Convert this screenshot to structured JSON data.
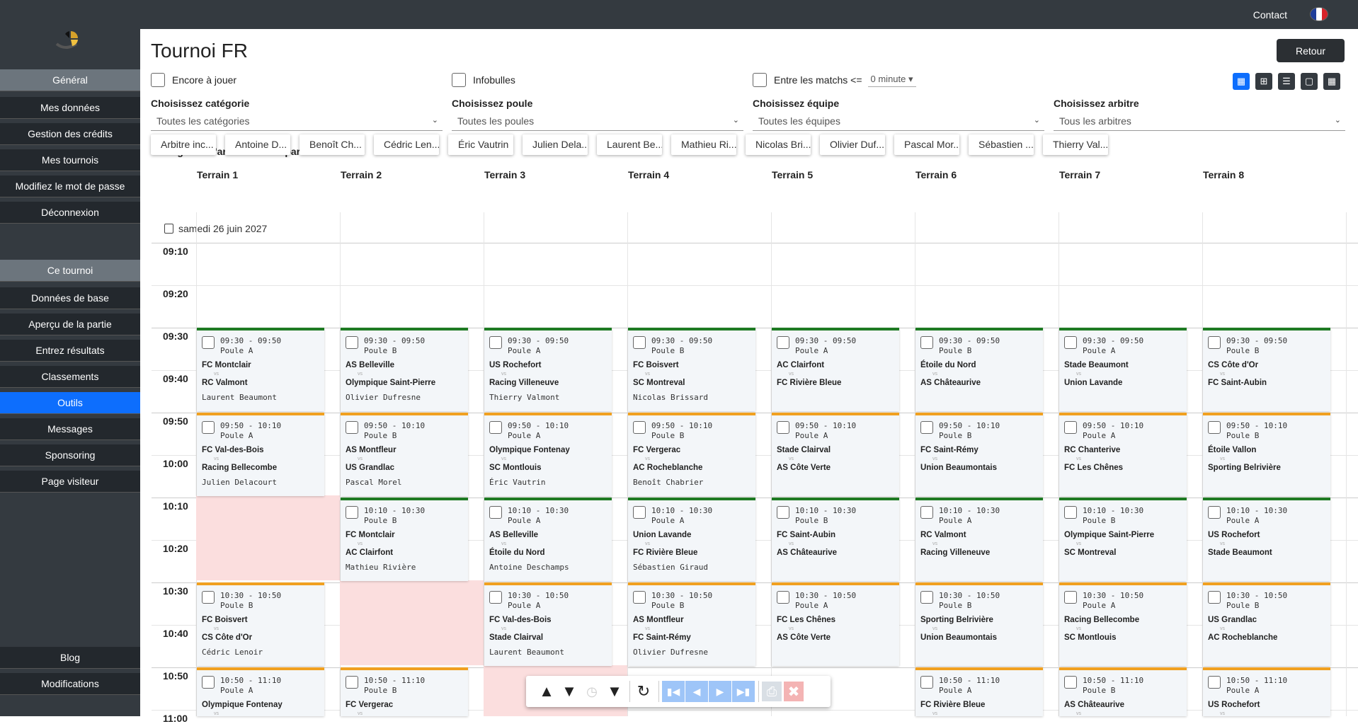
{
  "topbar": {
    "contact": "Contact"
  },
  "sidebar": {
    "general_header": "Général",
    "general_items": [
      "Mes données",
      "Gestion des crédits",
      "Mes tournois",
      "Modifiez le mot de passe",
      "Déconnexion"
    ],
    "tournoi_header": "Ce tournoi",
    "tournoi_items": [
      "Données de base",
      "Aperçu de la partie",
      "Entrez résultats",
      "Classements",
      "Outils",
      "Messages",
      "Sponsoring",
      "Page visiteur"
    ],
    "active_item": "Outils",
    "bottom_items": [
      "Blog",
      "Modifications"
    ]
  },
  "page": {
    "title": "Tournoi FR",
    "back_button": "Retour"
  },
  "options": {
    "encore": "Encore à jouer",
    "infobulles": "Infobulles",
    "entre": "Entre les matchs <=",
    "minutes": "0 minute"
  },
  "filters": {
    "categorie_label": "Choisissez catégorie",
    "categorie_value": "Toutes les catégories",
    "poule_label": "Choisissez poule",
    "poule_value": "Toutes les poules",
    "equipe_label": "Choisissez équipe",
    "equipe_value": "Toutes les équipes",
    "arbitre_label": "Choisissez arbitre",
    "arbitre_value": "Tous les arbitres"
  },
  "referees": {
    "label": "Faire glisser l'arbitre vers la partie",
    "items": [
      "Arbitre inc...",
      "Antoine D...",
      "Benoît Ch...",
      "Cédric Len...",
      "Éric Vautrin",
      "Julien Dela...",
      "Laurent Be...",
      "Mathieu Ri...",
      "Nicolas Bri...",
      "Olivier Duf...",
      "Pascal Mor...",
      "Sébastien ...",
      "Thierry Val..."
    ]
  },
  "terrains": [
    "Terrain 1",
    "Terrain 2",
    "Terrain 3",
    "Terrain 4",
    "Terrain 5",
    "Terrain 6",
    "Terrain 7",
    "Terrain 8"
  ],
  "date": "samedi 26 juin 2027",
  "times": [
    "09:10",
    "09:20",
    "09:30",
    "09:40",
    "09:50",
    "10:00",
    "10:10",
    "10:20",
    "10:30",
    "10:40",
    "10:50",
    "11:00"
  ],
  "slots": [
    {
      "time": "09:30 - 09:50",
      "color": "#1e7a23",
      "matches": [
        {
          "col": 0,
          "poule": "Poule A",
          "a": "FC Montclair",
          "b": "RC Valmont",
          "ref": "Laurent Beaumont"
        },
        {
          "col": 1,
          "poule": "Poule B",
          "a": "AS Belleville",
          "b": "Olympique Saint-Pierre",
          "ref": "Olivier Dufresne"
        },
        {
          "col": 2,
          "poule": "Poule A",
          "a": "US Rochefort",
          "b": "Racing Villeneuve",
          "ref": "Thierry Valmont"
        },
        {
          "col": 3,
          "poule": "Poule B",
          "a": "FC Boisvert",
          "b": "SC Montreval",
          "ref": "Nicolas Brissard"
        },
        {
          "col": 4,
          "poule": "Poule A",
          "a": "AC Clairfont",
          "b": "FC Rivière Bleue",
          "ref": ""
        },
        {
          "col": 5,
          "poule": "Poule B",
          "a": "Étoile du Nord",
          "b": "AS Châteaurive",
          "ref": ""
        },
        {
          "col": 6,
          "poule": "Poule A",
          "a": "Stade Beaumont",
          "b": "Union Lavande",
          "ref": ""
        },
        {
          "col": 7,
          "poule": "Poule B",
          "a": "CS Côte d'Or",
          "b": "FC Saint-Aubin",
          "ref": ""
        }
      ]
    },
    {
      "time": "09:50 - 10:10",
      "color": "#f0a020",
      "matches": [
        {
          "col": 0,
          "poule": "Poule A",
          "a": "FC Val-des-Bois",
          "b": "Racing Bellecombe",
          "ref": "Julien Delacourt"
        },
        {
          "col": 1,
          "poule": "Poule B",
          "a": "AS Montfleur",
          "b": "US Grandlac",
          "ref": "Pascal Morel"
        },
        {
          "col": 2,
          "poule": "Poule A",
          "a": "Olympique Fontenay",
          "b": "SC Montlouis",
          "ref": "Éric Vautrin"
        },
        {
          "col": 3,
          "poule": "Poule B",
          "a": "FC Vergerac",
          "b": "AC Rocheblanche",
          "ref": "Benoît Chabrier"
        },
        {
          "col": 4,
          "poule": "Poule A",
          "a": "Stade Clairval",
          "b": "AS Côte Verte",
          "ref": ""
        },
        {
          "col": 5,
          "poule": "Poule B",
          "a": "FC Saint-Rémy",
          "b": "Union Beaumontais",
          "ref": ""
        },
        {
          "col": 6,
          "poule": "Poule A",
          "a": "RC Chanterive",
          "b": "FC Les Chênes",
          "ref": ""
        },
        {
          "col": 7,
          "poule": "Poule B",
          "a": "Étoile Vallon",
          "b": "Sporting Belrivière",
          "ref": ""
        }
      ]
    },
    {
      "time": "10:10 - 10:30",
      "color": "#1e7a23",
      "matches": [
        {
          "col": 1,
          "poule": "Poule B",
          "a": "FC Montclair",
          "b": "AC Clairfont",
          "ref": "Mathieu Rivière"
        },
        {
          "col": 2,
          "poule": "Poule A",
          "a": "AS Belleville",
          "b": "Étoile du Nord",
          "ref": "Antoine Deschamps"
        },
        {
          "col": 3,
          "poule": "Poule A",
          "a": "Union Lavande",
          "b": "FC Rivière Bleue",
          "ref": "Sébastien Giraud"
        },
        {
          "col": 4,
          "poule": "Poule B",
          "a": "FC Saint-Aubin",
          "b": "AS Châteaurive",
          "ref": ""
        },
        {
          "col": 5,
          "poule": "Poule A",
          "a": "RC Valmont",
          "b": "Racing Villeneuve",
          "ref": ""
        },
        {
          "col": 6,
          "poule": "Poule B",
          "a": "Olympique Saint-Pierre",
          "b": "SC Montreval",
          "ref": ""
        },
        {
          "col": 7,
          "poule": "Poule A",
          "a": "US Rochefort",
          "b": "Stade Beaumont",
          "ref": ""
        }
      ]
    },
    {
      "time": "10:30 - 10:50",
      "color": "#f0a020",
      "matches": [
        {
          "col": 0,
          "poule": "Poule B",
          "a": "FC Boisvert",
          "b": "CS Côte d'Or",
          "ref": "Cédric Lenoir"
        },
        {
          "col": 2,
          "poule": "Poule A",
          "a": "FC Val-des-Bois",
          "b": "Stade Clairval",
          "ref": "Laurent Beaumont"
        },
        {
          "col": 3,
          "poule": "Poule B",
          "a": "AS Montfleur",
          "b": "FC Saint-Rémy",
          "ref": "Olivier Dufresne"
        },
        {
          "col": 4,
          "poule": "Poule A",
          "a": "FC Les Chênes",
          "b": "AS Côte Verte",
          "ref": ""
        },
        {
          "col": 5,
          "poule": "Poule B",
          "a": "Sporting Belrivière",
          "b": "Union Beaumontais",
          "ref": ""
        },
        {
          "col": 6,
          "poule": "Poule A",
          "a": "Racing Bellecombe",
          "b": "SC Montlouis",
          "ref": ""
        },
        {
          "col": 7,
          "poule": "Poule B",
          "a": "US Grandlac",
          "b": "AC Rocheblanche",
          "ref": ""
        }
      ]
    },
    {
      "time": "10:50 - 11:10",
      "color": "#f0a020",
      "matches": [
        {
          "col": 0,
          "poule": "Poule A",
          "a": "Olympique Fontenay",
          "b": "",
          "ref": ""
        },
        {
          "col": 1,
          "poule": "Poule B",
          "a": "FC Vergerac",
          "b": "",
          "ref": ""
        },
        {
          "col": 5,
          "poule": "Poule A",
          "a": "FC Rivière Bleue",
          "b": "",
          "ref": ""
        },
        {
          "col": 6,
          "poule": "Poule B",
          "a": "AS Châteaurive",
          "b": "",
          "ref": ""
        },
        {
          "col": 7,
          "poule": "Poule A",
          "a": "US Rochefort",
          "b": "",
          "ref": ""
        }
      ]
    }
  ],
  "vs_label": "vs",
  "colors": {
    "sidebar": "#343a40",
    "active": "#0d6efd",
    "green_bar": "#1e7a23",
    "orange_bar": "#f0a020",
    "blocked": "#fbdede"
  }
}
